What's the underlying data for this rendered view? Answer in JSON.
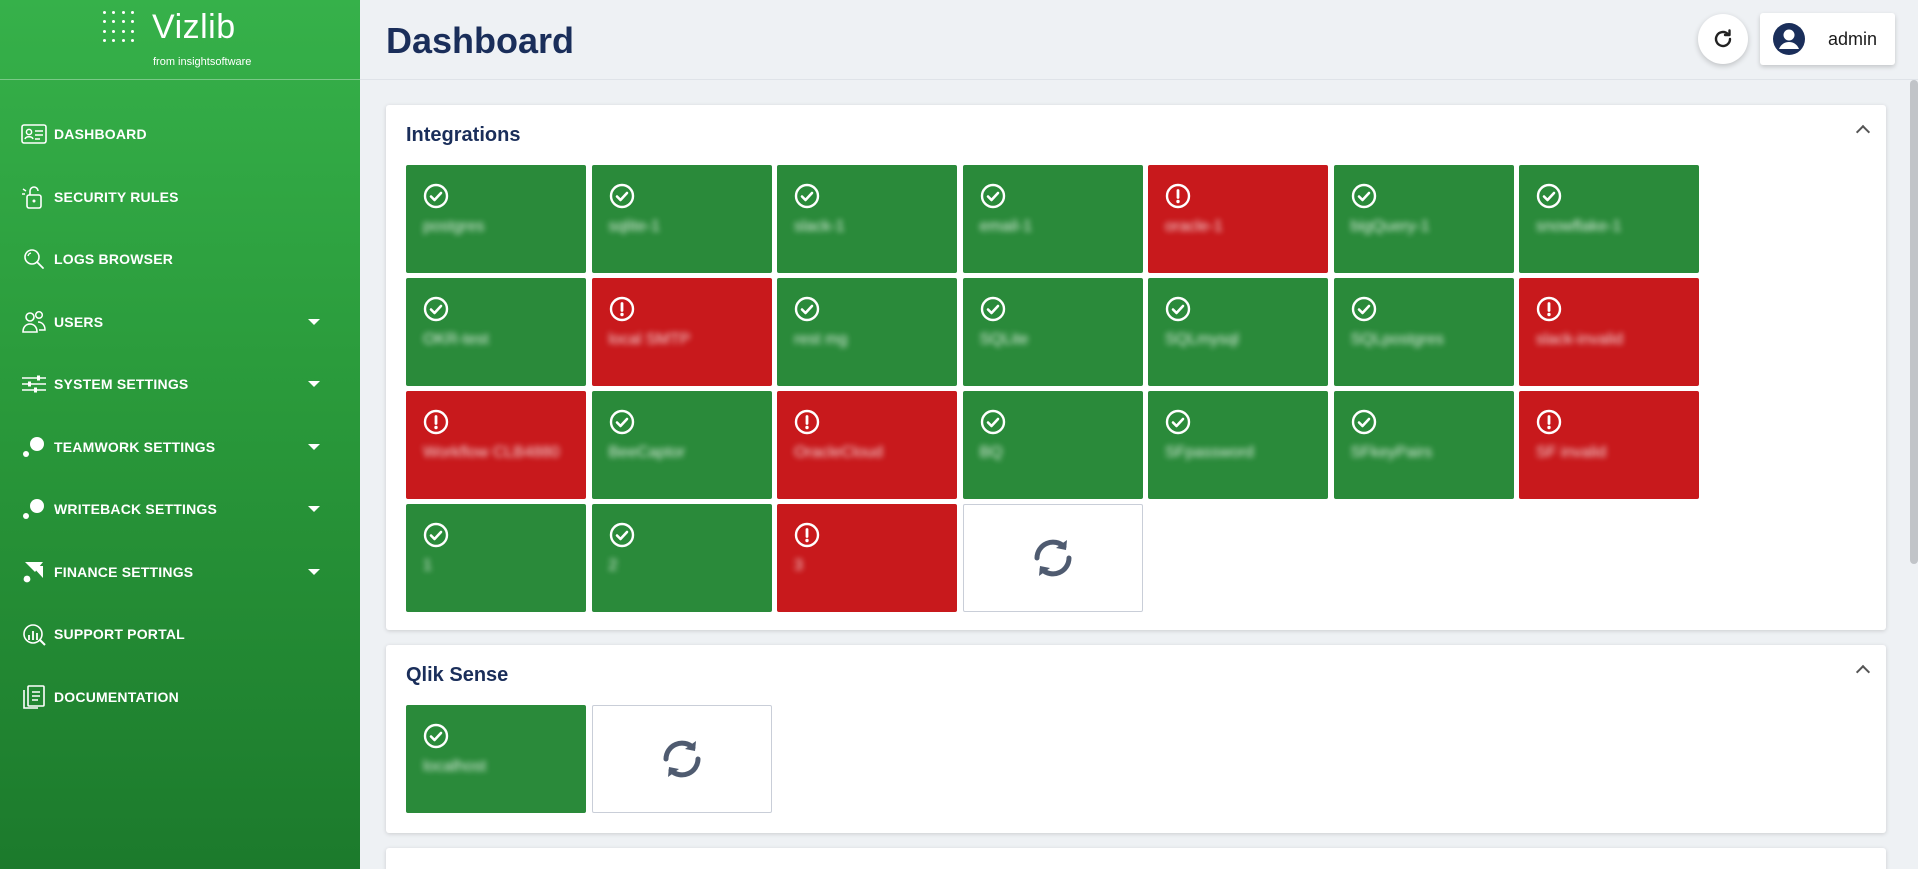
{
  "brand": {
    "name": "Vizlib",
    "tagline": "from insightsoftware"
  },
  "sidebar": {
    "items": [
      {
        "label": "DASHBOARD",
        "icon": "id-card-icon",
        "expandable": false
      },
      {
        "label": "SECURITY RULES",
        "icon": "lock-icon",
        "expandable": false
      },
      {
        "label": "LOGS BROWSER",
        "icon": "search-icon",
        "expandable": false
      },
      {
        "label": "USERS",
        "icon": "users-icon",
        "expandable": true
      },
      {
        "label": "SYSTEM SETTINGS",
        "icon": "sliders-icon",
        "expandable": true
      },
      {
        "label": "TEAMWORK SETTINGS",
        "icon": "teamwork-icon",
        "expandable": true
      },
      {
        "label": "WRITEBACK SETTINGS",
        "icon": "writeback-icon",
        "expandable": true
      },
      {
        "label": "FINANCE SETTINGS",
        "icon": "finance-icon",
        "expandable": true
      },
      {
        "label": "SUPPORT PORTAL",
        "icon": "support-icon",
        "expandable": false
      },
      {
        "label": "DOCUMENTATION",
        "icon": "document-icon",
        "expandable": false
      }
    ]
  },
  "header": {
    "title": "Dashboard",
    "user": "admin"
  },
  "integrations": {
    "title": "Integrations",
    "tiles": [
      {
        "name": "postgres",
        "status": "ok"
      },
      {
        "name": "sqlite-1",
        "status": "ok"
      },
      {
        "name": "slack-1",
        "status": "ok"
      },
      {
        "name": "email-1",
        "status": "ok"
      },
      {
        "name": "oracle-1",
        "status": "error"
      },
      {
        "name": "bigQuery-1",
        "status": "ok"
      },
      {
        "name": "snowflake-1",
        "status": "ok"
      },
      {
        "name": "OKR-test",
        "status": "ok"
      },
      {
        "name": "local SMTP",
        "status": "error"
      },
      {
        "name": "rest mg",
        "status": "ok"
      },
      {
        "name": "SQLite",
        "status": "ok"
      },
      {
        "name": "SQLmysql",
        "status": "ok"
      },
      {
        "name": "SQLpostgres",
        "status": "ok"
      },
      {
        "name": "slack-invalid",
        "status": "error"
      },
      {
        "name": "Workflow CLB4880",
        "status": "error"
      },
      {
        "name": "BeeCaptor",
        "status": "ok"
      },
      {
        "name": "OracleCloud",
        "status": "error"
      },
      {
        "name": "BQ",
        "status": "ok"
      },
      {
        "name": "SFpassword",
        "status": "ok"
      },
      {
        "name": "SFkeyPairs",
        "status": "ok"
      },
      {
        "name": "SF invalid",
        "status": "error"
      },
      {
        "name": "1",
        "status": "ok"
      },
      {
        "name": "2",
        "status": "ok"
      },
      {
        "name": "3",
        "status": "error"
      }
    ]
  },
  "qlik": {
    "title": "Qlik Sense",
    "tiles": [
      {
        "name": "localhost",
        "status": "ok"
      }
    ]
  },
  "colors": {
    "ok": "#2a8a3a",
    "error": "#c8191c",
    "sidebar": "#2a9a3b",
    "title": "#1a2e5a"
  }
}
